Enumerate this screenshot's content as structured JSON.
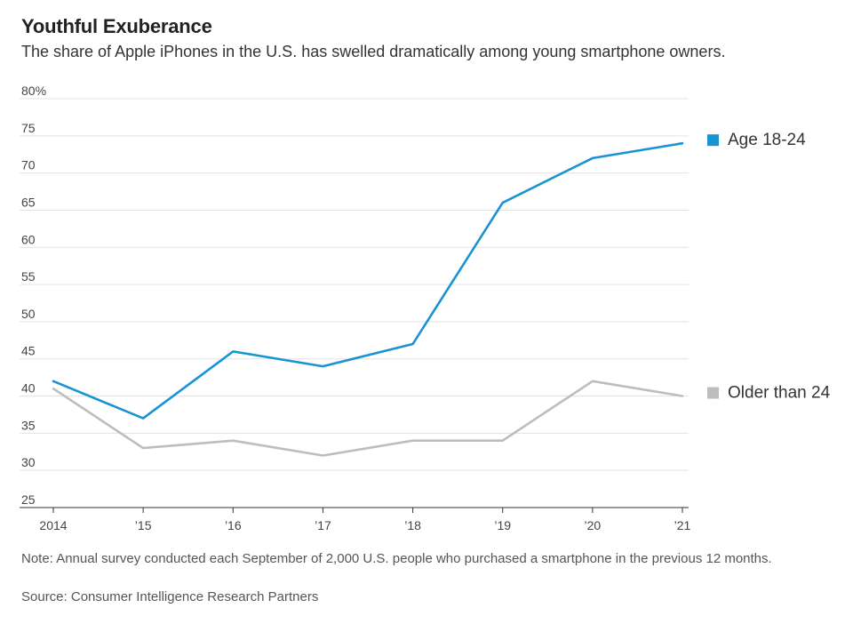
{
  "header": {
    "title": "Youthful Exuberance",
    "subtitle": "The share of Apple iPhones in the U.S. has swelled dramatically among young smartphone owners."
  },
  "footer": {
    "note": "Note: Annual survey conducted each September of 2,000 U.S. people who purchased a smartphone in the previous 12 months.",
    "source": "Source: Consumer Intelligence Research Partners"
  },
  "chart_data": {
    "type": "line",
    "title": "Youthful Exuberance",
    "subtitle": "The share of Apple iPhones in the U.S. has swelled dramatically among young smartphone owners.",
    "xlabel": "",
    "ylabel": "",
    "x": [
      "2014",
      "’15",
      "’16",
      "’17",
      "’18",
      "’19",
      "’20",
      "’21"
    ],
    "yticks": [
      25,
      30,
      35,
      40,
      45,
      50,
      55,
      60,
      65,
      70,
      75,
      80
    ],
    "ytick_labels": [
      "25",
      "30",
      "35",
      "40",
      "45",
      "50",
      "55",
      "60",
      "65",
      "70",
      "75",
      "80%"
    ],
    "ylim": [
      25,
      80
    ],
    "grid": true,
    "legend_placement": "right, beside line ends",
    "series": [
      {
        "name": "Age 18-24",
        "color": "#1a93d3",
        "values": [
          42,
          37,
          46,
          44,
          47,
          66,
          72,
          74
        ]
      },
      {
        "name": "Older than 24",
        "color": "#bdbdbd",
        "values": [
          41,
          33,
          34,
          32,
          34,
          34,
          42,
          40
        ]
      }
    ]
  }
}
